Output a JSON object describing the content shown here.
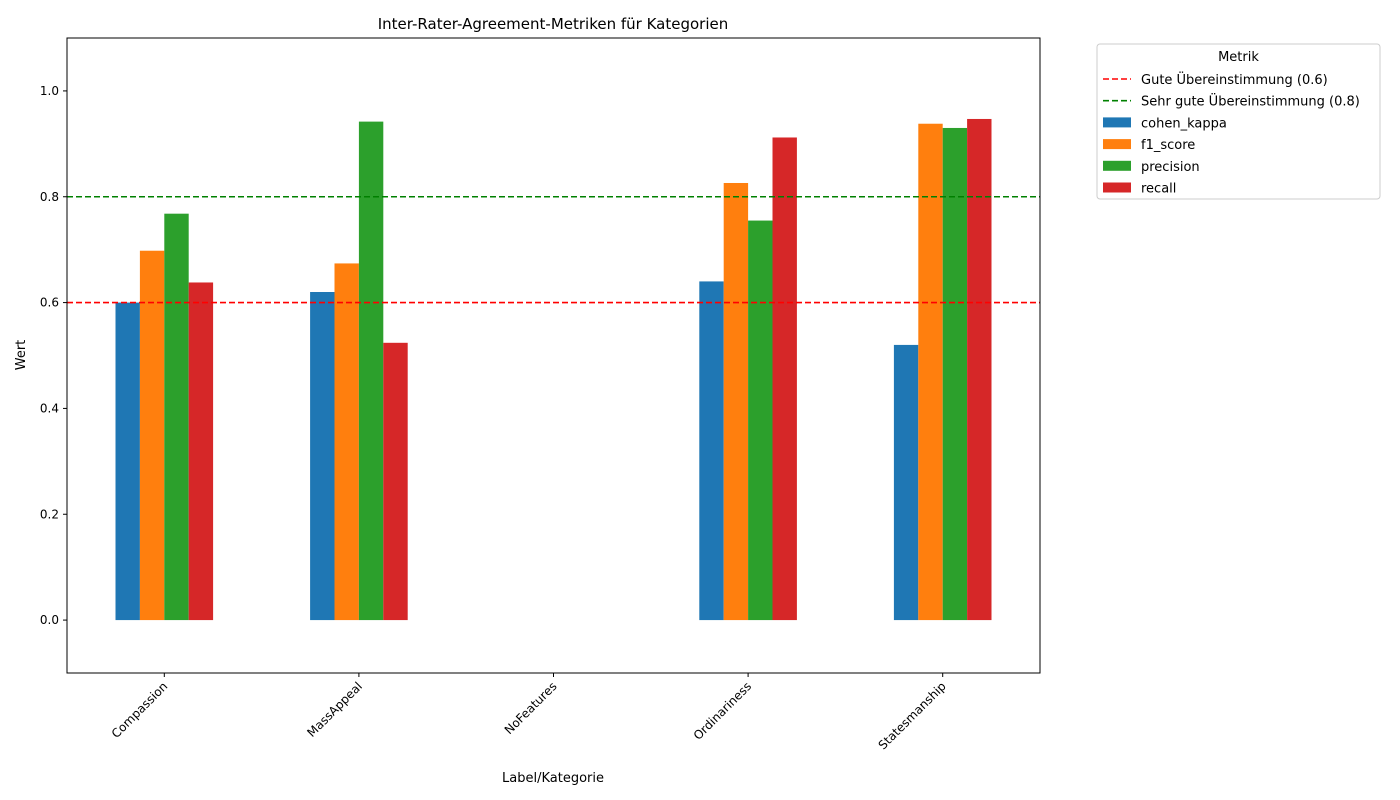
{
  "chart_data": {
    "type": "bar",
    "title": "Inter-Rater-Agreement-Metriken für Kategorien",
    "xlabel": "Label/Kategorie",
    "ylabel": "Wert",
    "categories": [
      "Compassion",
      "MassAppeal",
      "NoFeatures",
      "Ordinariness",
      "Statesmanship"
    ],
    "series": [
      {
        "name": "cohen_kappa",
        "color": "#1f77b4",
        "values": [
          0.6,
          0.62,
          null,
          0.64,
          0.52
        ]
      },
      {
        "name": "f1_score",
        "color": "#ff7f0e",
        "values": [
          0.698,
          0.674,
          null,
          0.826,
          0.938
        ]
      },
      {
        "name": "precision",
        "color": "#2ca02c",
        "values": [
          0.768,
          0.942,
          null,
          0.755,
          0.93
        ]
      },
      {
        "name": "recall",
        "color": "#d62728",
        "values": [
          0.638,
          0.524,
          null,
          0.912,
          0.947
        ]
      }
    ],
    "reference_lines": [
      {
        "name": "Gute Übereinstimmung (0.6)",
        "value": 0.6,
        "color": "#ff0000"
      },
      {
        "name": "Sehr gute Übereinstimmung (0.8)",
        "value": 0.8,
        "color": "#008000"
      }
    ],
    "ylim": [
      -0.1,
      1.1
    ],
    "yticks": [
      0.0,
      0.2,
      0.4,
      0.6,
      0.8,
      1.0
    ],
    "ytick_labels": [
      "0.0",
      "0.2",
      "0.4",
      "0.6",
      "0.8",
      "1.0"
    ],
    "legend": {
      "title": "Metrik",
      "placement": "outside-top-right"
    },
    "grid": false
  }
}
